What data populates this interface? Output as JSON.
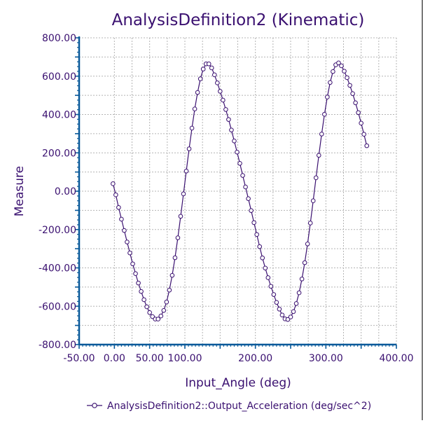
{
  "colors": {
    "series": "#3a1070",
    "text": "#3a1070",
    "axis": "#0a5a9a",
    "grid": "#b4b4b4",
    "marker_fill": "#ffffff"
  },
  "chart_data": {
    "type": "line",
    "title": "AnalysisDefinition2 (Kinematic)",
    "xlabel": "Input_Angle (deg)",
    "ylabel": "Measure",
    "xlim": [
      -50,
      400
    ],
    "ylim": [
      -800,
      800
    ],
    "xticks": [
      -50,
      0,
      50,
      100,
      200,
      300,
      400
    ],
    "xtick_labels": [
      "-50.00",
      "0.00",
      "50.00",
      "100.00",
      "200.00",
      "300.00",
      "400.00"
    ],
    "yticks": [
      800,
      600,
      400,
      200,
      0,
      -200,
      -400,
      -600,
      -800
    ],
    "ytick_labels": [
      "800.00",
      "600.00",
      "400.00",
      "200.00",
      "0.00",
      "-200.00",
      "-400.00",
      "-600.00",
      "-800.00"
    ],
    "grid": true,
    "legend_position": "bottom-center",
    "series": [
      {
        "name": "AnalysisDefinition2::Output_Acceleration (deg/sec^2)",
        "marker": "circle",
        "x": [
          -2,
          2,
          6,
          10,
          14,
          18,
          22,
          26,
          30,
          34,
          38,
          42,
          46,
          50,
          54,
          58,
          62,
          66,
          70,
          74,
          78,
          82,
          86,
          90,
          94,
          98,
          102,
          106,
          110,
          114,
          118,
          122,
          126,
          130,
          134,
          138,
          142,
          146,
          150,
          154,
          158,
          162,
          166,
          170,
          174,
          178,
          182,
          186,
          190,
          194,
          198,
          202,
          206,
          210,
          214,
          218,
          222,
          226,
          230,
          234,
          238,
          242,
          246,
          250,
          254,
          258,
          262,
          266,
          270,
          274,
          278,
          282,
          286,
          290,
          294,
          298,
          302,
          306,
          310,
          314,
          318,
          322,
          326,
          330,
          334,
          338,
          342,
          346,
          350,
          354,
          358
        ],
        "y": [
          39,
          -19,
          -85,
          -146,
          -205,
          -265,
          -322,
          -379,
          -430,
          -479,
          -523,
          -566,
          -603,
          -633,
          -654,
          -667,
          -667,
          -651,
          -622,
          -578,
          -516,
          -439,
          -347,
          -243,
          -131,
          -14,
          105,
          221,
          329,
          429,
          515,
          586,
          637,
          664,
          664,
          643,
          607,
          565,
          521,
          475,
          426,
          374,
          319,
          262,
          204,
          145,
          82,
          22,
          -39,
          -101,
          -164,
          -226,
          -289,
          -348,
          -401,
          -451,
          -496,
          -539,
          -580,
          -615,
          -646,
          -666,
          -669,
          -656,
          -628,
          -586,
          -530,
          -458,
          -373,
          -275,
          -166,
          -50,
          70,
          187,
          298,
          401,
          491,
          567,
          624,
          659,
          669,
          654,
          626,
          592,
          552,
          509,
          461,
          410,
          355,
          297,
          237
        ]
      }
    ]
  }
}
